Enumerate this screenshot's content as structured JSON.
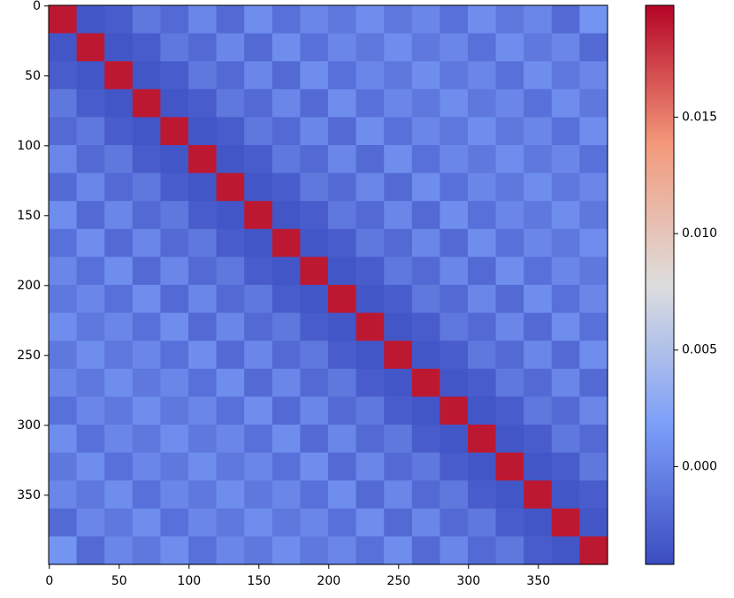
{
  "chart_data": {
    "type": "heatmap",
    "colormap": "coolwarm",
    "xlim": [
      -0.5,
      399.5
    ],
    "ylim": [
      399.5,
      -0.5
    ],
    "xticks": [
      0,
      50,
      100,
      150,
      200,
      250,
      300,
      350
    ],
    "yticks": [
      0,
      50,
      100,
      150,
      200,
      250,
      300,
      350
    ],
    "zlim": [
      -0.0042,
      0.0198
    ],
    "colorbar_ticks": [
      {
        "value": 0,
        "label": "0.000"
      },
      {
        "value": 0.005,
        "label": "0.005"
      },
      {
        "value": 0.01,
        "label": "0.010"
      },
      {
        "value": 0.015,
        "label": "0.015"
      }
    ],
    "values": [
      [
        0.019,
        -0.0035,
        -0.003,
        -0.001,
        -0.002,
        0,
        -0.002,
        0.0005,
        -0.0015,
        0,
        -0.001,
        0.0005,
        -0.001,
        0,
        -0.0015,
        0.0005,
        -0.001,
        0,
        -0.002,
        0.001
      ],
      [
        -0.0035,
        0.019,
        -0.0035,
        -0.003,
        -0.001,
        -0.002,
        0,
        -0.002,
        0.0005,
        -0.0015,
        0,
        -0.001,
        0.0005,
        -0.001,
        0,
        -0.0015,
        0.0005,
        -0.001,
        0,
        -0.002
      ],
      [
        -0.003,
        -0.0035,
        0.019,
        -0.0035,
        -0.003,
        -0.001,
        -0.002,
        0,
        -0.002,
        0.0005,
        -0.0015,
        0,
        -0.001,
        0.0005,
        -0.001,
        0,
        -0.0015,
        0.0005,
        -0.001,
        0
      ],
      [
        -0.001,
        -0.003,
        -0.0035,
        0.019,
        -0.0035,
        -0.003,
        -0.001,
        -0.002,
        0,
        -0.002,
        0.0005,
        -0.0015,
        0,
        -0.001,
        0.0005,
        -0.001,
        0,
        -0.0015,
        0.0005,
        -0.001
      ],
      [
        -0.002,
        -0.001,
        -0.003,
        -0.0035,
        0.019,
        -0.0035,
        -0.003,
        -0.001,
        -0.002,
        0,
        -0.002,
        0.0005,
        -0.0015,
        0,
        -0.001,
        0.0005,
        -0.001,
        0,
        -0.0015,
        0.0005
      ],
      [
        0,
        -0.002,
        -0.001,
        -0.003,
        -0.0035,
        0.019,
        -0.0035,
        -0.003,
        -0.001,
        -0.002,
        0,
        -0.002,
        0.0005,
        -0.0015,
        0,
        -0.001,
        0.0005,
        -0.001,
        0,
        -0.0015
      ],
      [
        -0.002,
        0,
        -0.002,
        -0.001,
        -0.003,
        -0.0035,
        0.019,
        -0.0035,
        -0.003,
        -0.001,
        -0.002,
        0,
        -0.002,
        0.0005,
        -0.0015,
        0,
        -0.001,
        0.0005,
        -0.001,
        0
      ],
      [
        0.0005,
        -0.002,
        0,
        -0.002,
        -0.001,
        -0.003,
        -0.0035,
        0.019,
        -0.0035,
        -0.003,
        -0.001,
        -0.002,
        0,
        -0.002,
        0.0005,
        -0.0015,
        0,
        -0.001,
        0.0005,
        -0.001
      ],
      [
        -0.0015,
        0.0005,
        -0.002,
        0,
        -0.002,
        -0.001,
        -0.003,
        -0.0035,
        0.019,
        -0.0035,
        -0.003,
        -0.001,
        -0.002,
        0,
        -0.002,
        0.0005,
        -0.0015,
        0,
        -0.001,
        0.0005
      ],
      [
        0,
        -0.0015,
        0.0005,
        -0.002,
        0,
        -0.002,
        -0.001,
        -0.003,
        -0.0035,
        0.019,
        -0.0035,
        -0.003,
        -0.001,
        -0.002,
        0,
        -0.002,
        0.0005,
        -0.0015,
        0,
        -0.001
      ],
      [
        -0.001,
        0,
        -0.0015,
        0.0005,
        -0.002,
        0,
        -0.002,
        -0.001,
        -0.003,
        -0.0035,
        0.019,
        -0.0035,
        -0.003,
        -0.001,
        -0.002,
        0,
        -0.002,
        0.0005,
        -0.0015,
        0
      ],
      [
        0.0005,
        -0.001,
        0,
        -0.0015,
        0.0005,
        -0.002,
        0,
        -0.002,
        -0.001,
        -0.003,
        -0.0035,
        0.019,
        -0.0035,
        -0.003,
        -0.001,
        -0.002,
        0,
        -0.002,
        0.0005,
        -0.0015
      ],
      [
        -0.001,
        0.0005,
        -0.001,
        0,
        -0.0015,
        0.0005,
        -0.002,
        0,
        -0.002,
        -0.001,
        -0.003,
        -0.0035,
        0.019,
        -0.0035,
        -0.003,
        -0.001,
        -0.002,
        0,
        -0.002,
        0.0005
      ],
      [
        0,
        -0.001,
        0.0005,
        -0.001,
        0,
        -0.0015,
        0.0005,
        -0.002,
        0,
        -0.002,
        -0.001,
        -0.003,
        -0.0035,
        0.019,
        -0.0035,
        -0.003,
        -0.001,
        -0.002,
        0,
        -0.002
      ],
      [
        -0.0015,
        0,
        -0.001,
        0.0005,
        -0.001,
        0,
        -0.0015,
        0.0005,
        -0.002,
        0,
        -0.002,
        -0.001,
        -0.003,
        -0.0035,
        0.019,
        -0.0035,
        -0.003,
        -0.001,
        -0.002,
        0
      ],
      [
        0.0005,
        -0.0015,
        0,
        -0.001,
        0.0005,
        -0.001,
        0,
        -0.0015,
        0.0005,
        -0.002,
        0,
        -0.002,
        -0.001,
        -0.003,
        -0.0035,
        0.019,
        -0.0035,
        -0.003,
        -0.001,
        -0.002
      ],
      [
        -0.001,
        0.0005,
        -0.0015,
        0,
        -0.001,
        0.0005,
        -0.001,
        0,
        -0.0015,
        0.0005,
        -0.002,
        0,
        -0.002,
        -0.001,
        -0.003,
        -0.0035,
        0.019,
        -0.0035,
        -0.003,
        -0.001
      ],
      [
        0,
        -0.001,
        0.0005,
        -0.0015,
        0,
        -0.001,
        0.0005,
        -0.001,
        0,
        -0.0015,
        0.0005,
        -0.002,
        0,
        -0.002,
        -0.001,
        -0.003,
        -0.0035,
        0.019,
        -0.0035,
        -0.003
      ],
      [
        -0.002,
        0,
        -0.001,
        0.0005,
        -0.0015,
        0,
        -0.001,
        0.0005,
        -0.001,
        0,
        -0.0015,
        0.0005,
        -0.002,
        0,
        -0.002,
        -0.001,
        -0.003,
        -0.0035,
        0.019,
        -0.0035
      ],
      [
        0.001,
        -0.002,
        0,
        -0.001,
        0.0005,
        -0.0015,
        0,
        -0.001,
        0.0005,
        -0.001,
        0,
        -0.0015,
        0.0005,
        -0.002,
        0,
        -0.002,
        -0.001,
        -0.003,
        -0.0035,
        0.019
      ]
    ]
  }
}
